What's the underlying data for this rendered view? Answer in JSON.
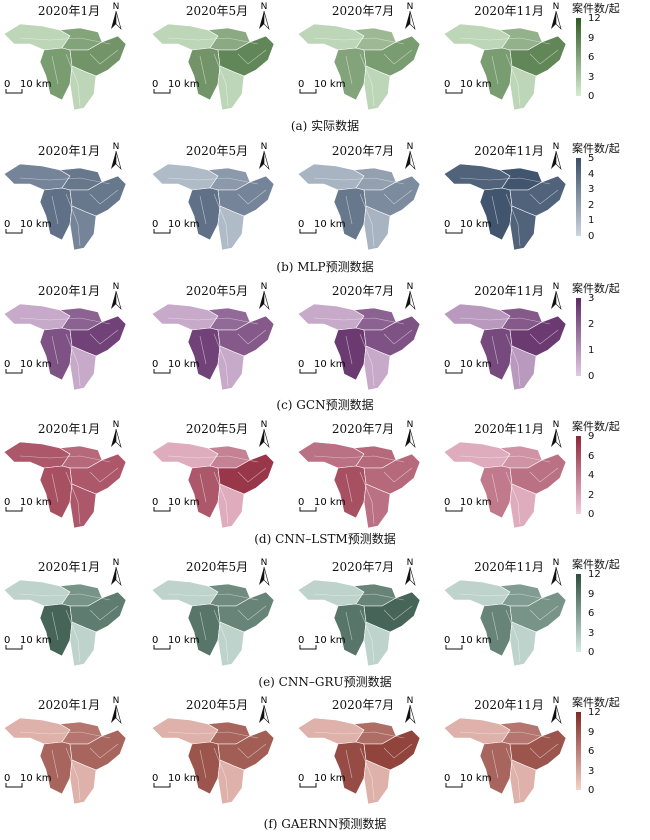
{
  "legend_title": "案件数/起",
  "scale_label": "10 km",
  "scale_zero": "0",
  "north_label": "N",
  "months": [
    "2020年1月",
    "2020年5月",
    "2020年7月",
    "2020年11月"
  ],
  "rows": [
    {
      "caption": "(a) 实际数据",
      "ticks": [
        "12",
        "9",
        "6",
        "3",
        "0"
      ],
      "colors": {
        "light": "#d6ecd2",
        "dark": "#2f5a22"
      },
      "intensity": [
        [
          0.15,
          0.5,
          0.55,
          0.6
        ],
        [
          0.15,
          0.45,
          0.6,
          0.7
        ],
        [
          0.15,
          0.35,
          0.5,
          0.55
        ],
        [
          0.15,
          0.4,
          0.55,
          0.7
        ]
      ]
    },
    {
      "caption": "(b) MLP预测数据",
      "ticks": [
        "5",
        "4",
        "3",
        "2",
        "1",
        "0"
      ],
      "colors": {
        "light": "#ccd6df",
        "dark": "#3b4e69"
      },
      "intensity": [
        [
          0.6,
          0.7,
          0.75,
          0.7
        ],
        [
          0.2,
          0.45,
          0.75,
          0.6
        ],
        [
          0.25,
          0.4,
          0.7,
          0.55
        ],
        [
          0.85,
          0.95,
          0.95,
          0.85
        ]
      ]
    },
    {
      "caption": "(c) GCN预测数据",
      "ticks": [
        "3",
        "2",
        "1",
        "0"
      ],
      "colors": {
        "light": "#e1c9e4",
        "dark": "#5d2a64"
      },
      "intensity": [
        [
          0.2,
          0.65,
          0.75,
          0.85
        ],
        [
          0.2,
          0.6,
          0.85,
          0.7
        ],
        [
          0.2,
          0.65,
          0.9,
          0.75
        ],
        [
          0.3,
          0.7,
          0.8,
          0.9
        ]
      ]
    },
    {
      "caption": "(d) CNN–LSTM预测数据",
      "ticks": [
        "9",
        "6",
        "4",
        "2",
        "0"
      ],
      "colors": {
        "light": "#f3cde0",
        "dark": "#8d2638"
      },
      "intensity": [
        [
          0.7,
          0.6,
          0.75,
          0.7
        ],
        [
          0.2,
          0.45,
          0.7,
          0.9
        ],
        [
          0.55,
          0.6,
          0.75,
          0.6
        ],
        [
          0.2,
          0.35,
          0.5,
          0.55
        ]
      ]
    },
    {
      "caption": "(e) CNN–GRU预测数据",
      "ticks": [
        "12",
        "9",
        "6",
        "3",
        "0"
      ],
      "colors": {
        "light": "#d6ebe3",
        "dark": "#2c4d40"
      },
      "intensity": [
        [
          0.15,
          0.55,
          0.85,
          0.7
        ],
        [
          0.15,
          0.6,
          0.75,
          0.65
        ],
        [
          0.15,
          0.65,
          0.75,
          0.85
        ],
        [
          0.15,
          0.5,
          0.65,
          0.55
        ]
      ]
    },
    {
      "caption": "(f) GAERNN预测数据",
      "ticks": [
        "12",
        "9",
        "6",
        "3",
        "0"
      ],
      "colors": {
        "light": "#f6d2cc",
        "dark": "#7e2b22"
      },
      "intensity": [
        [
          0.2,
          0.55,
          0.65,
          0.65
        ],
        [
          0.2,
          0.65,
          0.75,
          0.7
        ],
        [
          0.2,
          0.6,
          0.8,
          0.85
        ],
        [
          0.2,
          0.55,
          0.65,
          0.75
        ]
      ]
    }
  ]
}
